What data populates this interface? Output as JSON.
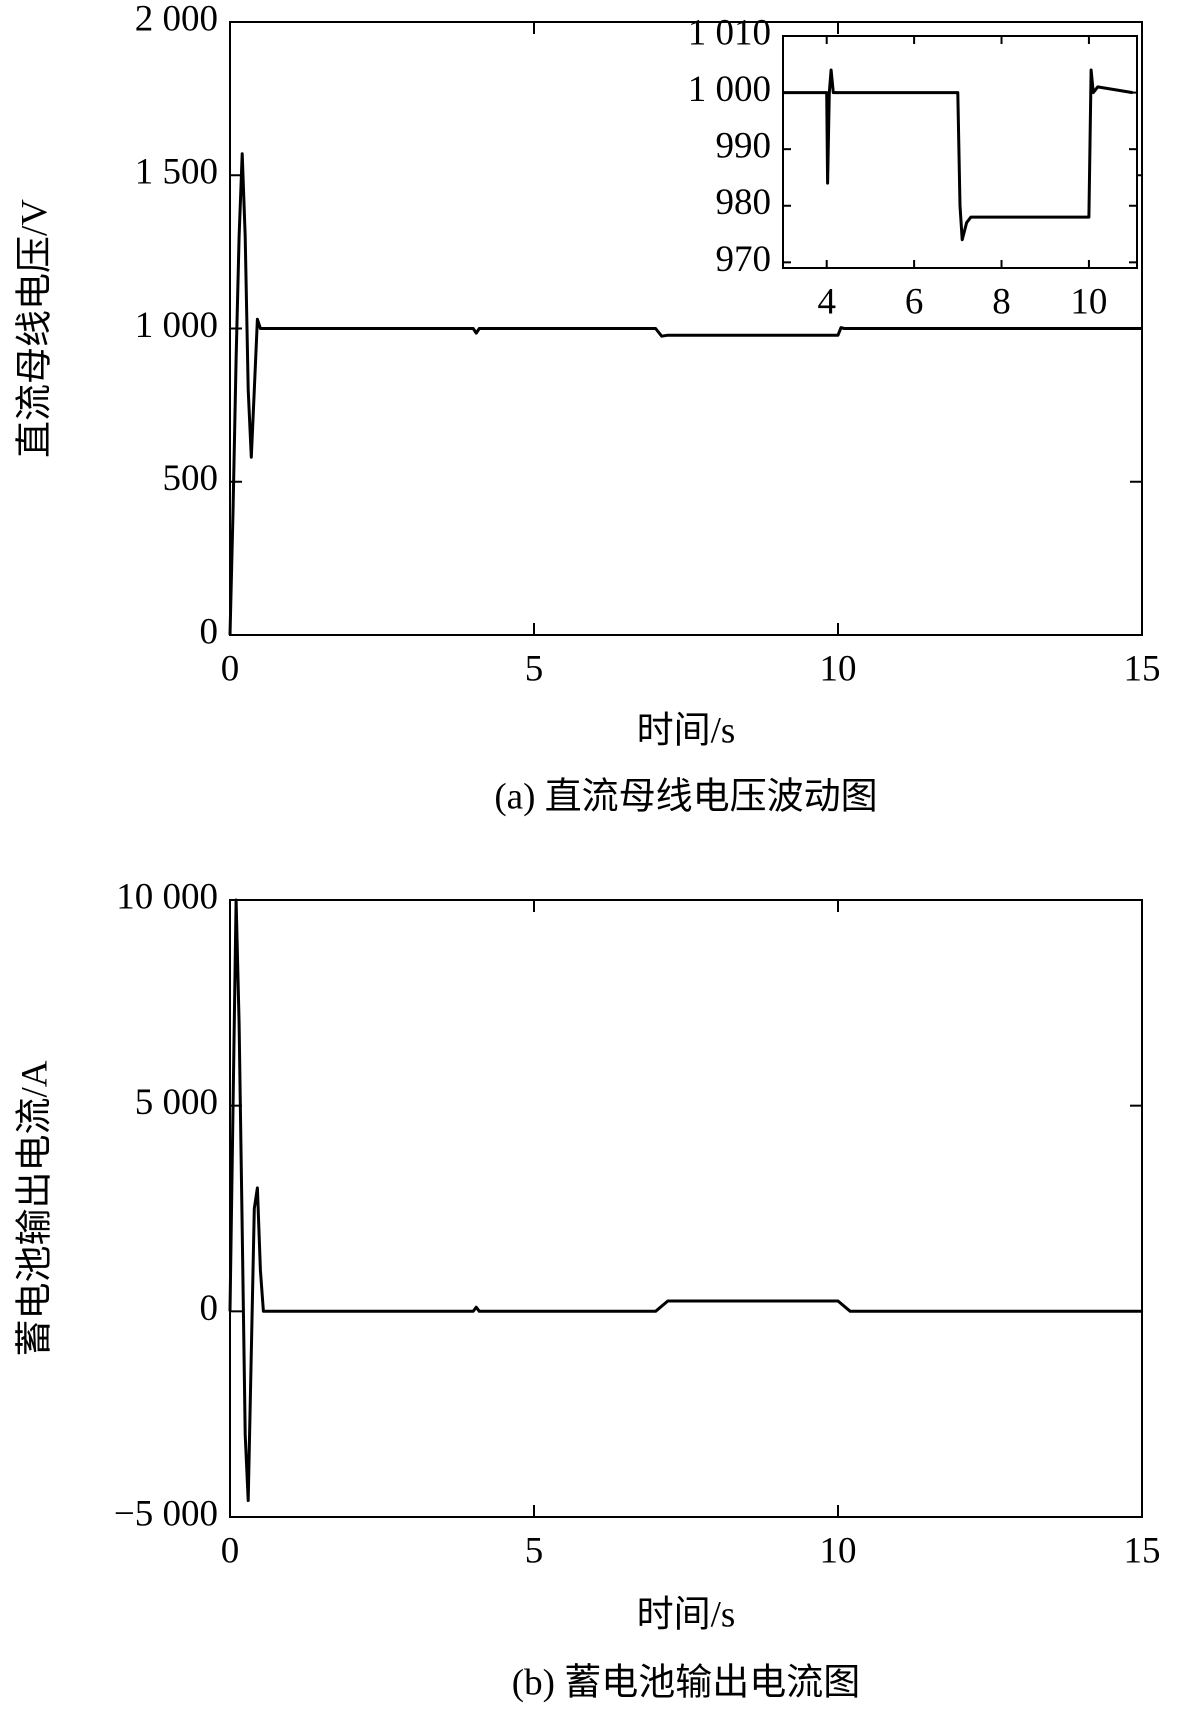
{
  "chart_data": [
    {
      "type": "line",
      "ylabel": "直流母线电压/V",
      "xlabel": "时间/s",
      "caption": "(a) 直流母线电压波动图",
      "x": [
        0,
        0.05,
        0.1,
        0.15,
        0.2,
        0.25,
        0.3,
        0.35,
        0.4,
        0.45,
        0.5,
        4,
        4.05,
        4.1,
        7,
        7.1,
        7.2,
        10,
        10.05,
        10.1,
        15
      ],
      "series": [
        {
          "color": "#000000",
          "values": [
            0,
            400,
            900,
            1300,
            1570,
            1300,
            800,
            580,
            800,
            1030,
            1000,
            1000,
            985,
            1000,
            1000,
            975,
            978,
            978,
            1003,
            1000,
            1000
          ]
        }
      ],
      "xlim": [
        0,
        15
      ],
      "ylim": [
        0,
        2000
      ],
      "xticks": [
        0,
        5,
        10,
        15
      ],
      "yticks": [
        0,
        500,
        {
          "value": 1000,
          "label": "1 000"
        },
        {
          "value": 1500,
          "label": "1 500"
        },
        {
          "value": 2000,
          "label": "2 000"
        }
      ]
    },
    {
      "type": "line",
      "x": [
        3,
        4,
        4.02,
        4.06,
        4.1,
        4.15,
        7,
        7.05,
        7.1,
        7.2,
        7.3,
        10,
        10.05,
        10.1,
        10.2,
        11
      ],
      "series": [
        {
          "color": "#000000",
          "values": [
            1000,
            1000,
            984,
            1000,
            1004,
            1000,
            1000,
            980,
            974,
            977,
            978,
            978,
            1004,
            1000,
            1001,
            1000
          ]
        }
      ],
      "xlim": [
        3,
        11.1
      ],
      "ylim": [
        969,
        1010
      ],
      "xticks": [
        4,
        6,
        8,
        10
      ],
      "yticks": [
        970,
        980,
        990,
        {
          "value": 1000,
          "label": "1 000"
        },
        {
          "value": 1010,
          "label": "1 010"
        }
      ]
    },
    {
      "type": "line",
      "ylabel": "蓄电池输出电流/A",
      "xlabel": "时间/s",
      "caption": "(b) 蓄电池输出电流图",
      "x": [
        0,
        0.1,
        0.15,
        0.2,
        0.25,
        0.3,
        0.35,
        0.4,
        0.45,
        0.5,
        0.55,
        4,
        4.05,
        4.1,
        7,
        7.2,
        10,
        10.2,
        15
      ],
      "series": [
        {
          "color": "#000000",
          "values": [
            0,
            10000,
            7000,
            2000,
            -3000,
            -4600,
            -1000,
            2500,
            3000,
            1000,
            0,
            0,
            100,
            0,
            0,
            250,
            250,
            0,
            0
          ]
        }
      ],
      "xlim": [
        0,
        15
      ],
      "ylim": [
        -5000,
        10000
      ],
      "xticks": [
        0,
        5,
        10,
        15
      ],
      "yticks": [
        {
          "value": -5000,
          "label": "−5 000"
        },
        0,
        {
          "value": 5000,
          "label": "5 000"
        },
        {
          "value": 10000,
          "label": "10 000"
        }
      ]
    }
  ]
}
